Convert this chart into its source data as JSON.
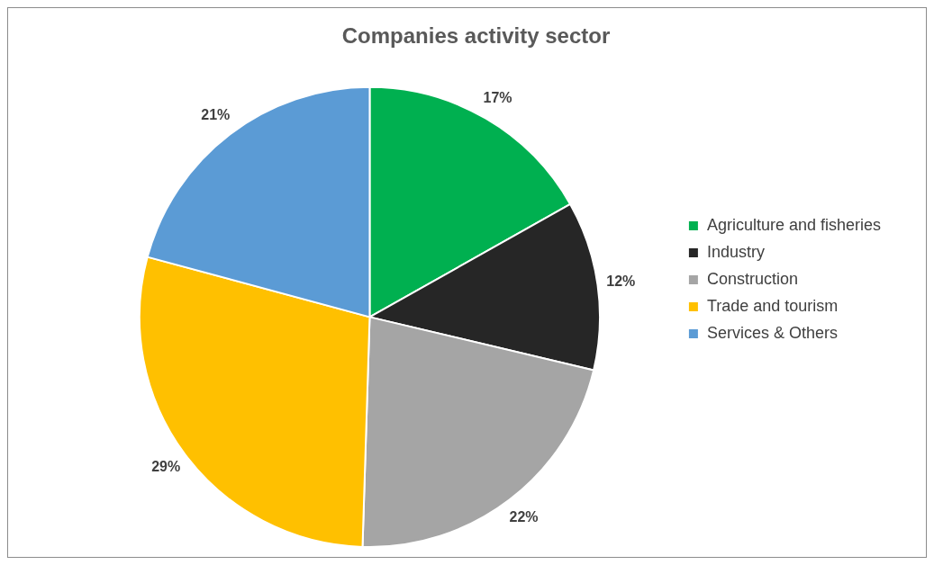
{
  "chart_data": {
    "type": "pie",
    "title": "Companies activity sector",
    "categories": [
      "Agriculture and fisheries",
      "Industry",
      "Construction",
      "Trade and tourism",
      "Services & Others"
    ],
    "values": [
      17,
      12,
      22,
      29,
      21
    ],
    "colors": [
      "#00b050",
      "#262626",
      "#a5a5a5",
      "#ffc000",
      "#5b9bd5"
    ],
    "value_labels": [
      "17%",
      "12%",
      "22%",
      "29%",
      "21%"
    ],
    "legend": "right"
  }
}
